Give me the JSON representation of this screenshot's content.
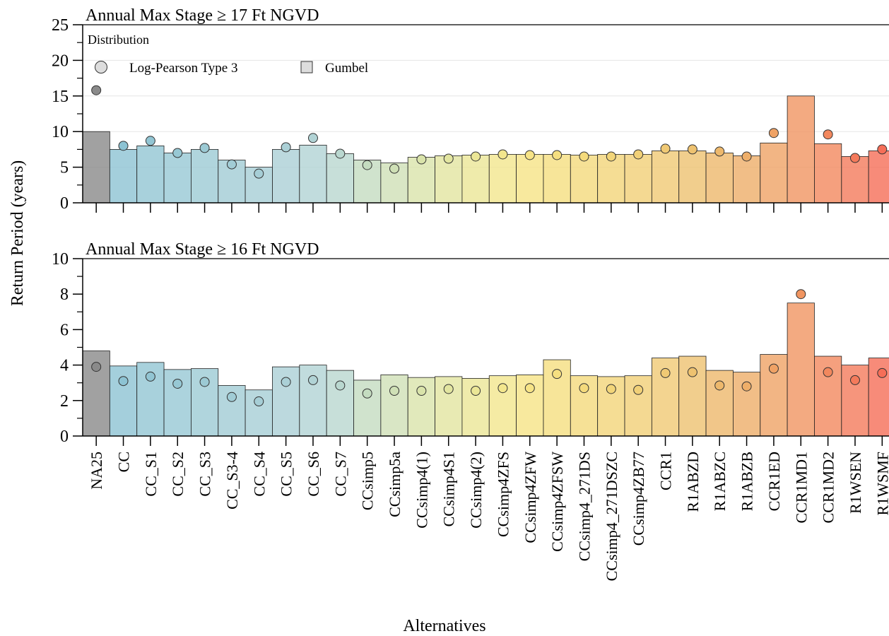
{
  "chart_data": {
    "type": "bar",
    "xlabel": "Alternatives",
    "ylabel": "Return Period (years)",
    "categories": [
      "NA25",
      "CC",
      "CC_S1",
      "CC_S2",
      "CC_S3",
      "CC_S3-4",
      "CC_S4",
      "CC_S5",
      "CC_S6",
      "CC_S7",
      "CCsimp5",
      "CCsimp5a",
      "CCsimp4(1)",
      "CCsimp4S1",
      "CCsimp4(2)",
      "CCsimp4ZFS",
      "CCsimp4ZFW",
      "CCsimp4ZFSW",
      "CCsimp4_271DS",
      "CCsimp4_271DSZC",
      "CCsimp4ZB77",
      "CCR1",
      "R1ABZD",
      "R1ABZC",
      "R1ABZB",
      "CCR1ED",
      "CCR1MD1",
      "CCR1MD2",
      "R1WSEN",
      "R1WSMF"
    ],
    "colors": [
      "#8a8a8a",
      "#8dc3d3",
      "#92c5d3",
      "#97c8d4",
      "#9ccad4",
      "#a1ccd5",
      "#a6ced6",
      "#abd0d6",
      "#b1d3d5",
      "#b9d7cf",
      "#c4dcc0",
      "#cfe0b6",
      "#d9e3aa",
      "#e2e5a0",
      "#ebe696",
      "#f3e68d",
      "#f6e386",
      "#f5df80",
      "#f4da7c",
      "#f2d579",
      "#f1d077",
      "#f0c974",
      "#eec270",
      "#edb86c",
      "#eeae69",
      "#efa265",
      "#f09561",
      "#f2885e",
      "#f47a5b",
      "#f56e58"
    ],
    "legend": {
      "title": "Distribution",
      "position": "upper left",
      "entries": [
        {
          "name": "Log-Pearson Type 3",
          "marker": "circle"
        },
        {
          "name": "Gumbel",
          "marker": "square"
        }
      ]
    },
    "panels": [
      {
        "title": "Annual Max Stage ≥ 17 Ft NGVD",
        "ylim": [
          0,
          25
        ],
        "yticks": [
          0,
          5,
          10,
          15,
          20,
          25
        ],
        "yminor": [
          2.5,
          7.5,
          12.5,
          17.5,
          22.5
        ],
        "grid": true,
        "series": [
          {
            "values": [
              15.8,
              8,
              8.7,
              7,
              7.7,
              5.4,
              4.1,
              7.8,
              9.1,
              6.9,
              5.3,
              4.8,
              6.1,
              6.2,
              6.5,
              6.8,
              6.7,
              6.7,
              6.5,
              6.5,
              6.8,
              7.6,
              7.5,
              7.2,
              6.5,
              9.8,
              null,
              9.6,
              6.3,
              7.5
            ]
          },
          {
            "values": [
              10,
              7.5,
              8,
              7,
              7.5,
              6,
              5,
              7.5,
              8.1,
              6.9,
              6,
              5.6,
              6.4,
              6.6,
              6.7,
              6.8,
              6.8,
              6.8,
              6.7,
              6.8,
              6.8,
              7.3,
              7.3,
              7,
              6.6,
              8.4,
              15,
              8.3,
              6.5,
              7.3
            ]
          }
        ]
      },
      {
        "title": "Annual Max Stage ≥ 16 Ft NGVD",
        "ylim": [
          0,
          10
        ],
        "yticks": [
          0,
          2,
          4,
          6,
          8,
          10
        ],
        "yminor": [
          1,
          3,
          5,
          7,
          9
        ],
        "grid": false,
        "series": [
          {
            "values": [
              3.9,
              3.1,
              3.35,
              2.95,
              3.05,
              2.2,
              1.95,
              3.05,
              3.15,
              2.85,
              2.4,
              2.55,
              2.55,
              2.65,
              2.55,
              2.7,
              2.7,
              3.5,
              2.7,
              2.65,
              2.6,
              3.55,
              3.6,
              2.85,
              2.8,
              3.8,
              8,
              3.6,
              3.15,
              3.55
            ]
          },
          {
            "values": [
              4.8,
              3.95,
              4.15,
              3.75,
              3.8,
              2.85,
              2.6,
              3.9,
              4,
              3.7,
              3.15,
              3.45,
              3.3,
              3.35,
              3.25,
              3.4,
              3.45,
              4.3,
              3.4,
              3.35,
              3.4,
              4.4,
              4.5,
              3.7,
              3.6,
              4.6,
              7.5,
              4.5,
              4,
              4.4
            ]
          }
        ]
      }
    ]
  }
}
